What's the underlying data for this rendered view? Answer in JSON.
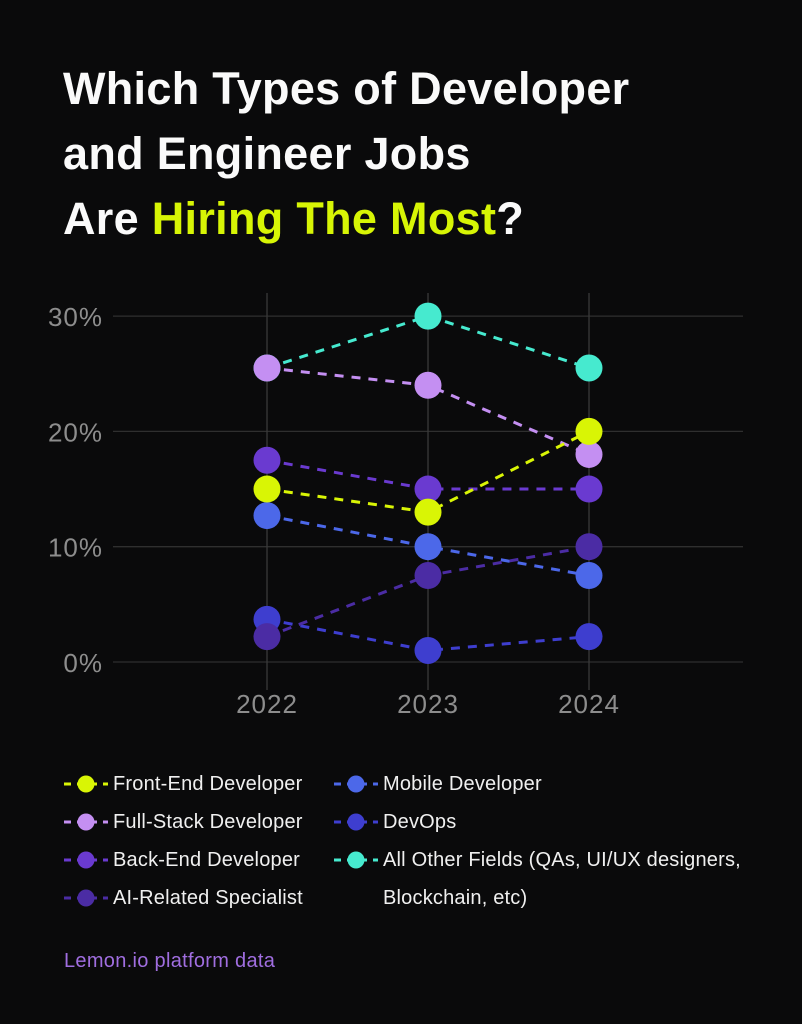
{
  "title": {
    "line1": "Which Types of Developer",
    "line2": "and Engineer Jobs",
    "line3_prefix": "Are ",
    "line3_highlight": "Hiring The Most",
    "line3_suffix": "?"
  },
  "colors": {
    "background": "#0a0a0b",
    "title_text": "#fafafa",
    "highlight": "#d7f505",
    "grid_h": "#2f2f2f",
    "grid_v": "#3a3a3a",
    "axis_text": "#8d8d8d",
    "legend_text": "#f0f0f0",
    "footer_text": "#a06ee0"
  },
  "chart_data": {
    "type": "line",
    "line_style": "dashed",
    "x": [
      2022,
      2023,
      2024
    ],
    "x_labels": [
      "2022",
      "2023",
      "2024"
    ],
    "y_ticks": [
      "0%",
      "10%",
      "20%",
      "30%"
    ],
    "ylim": [
      0,
      30
    ],
    "grid": true,
    "legend_position": "bottom",
    "series": [
      {
        "name": "Front-End Developer",
        "color": "#d9f505",
        "values": [
          15,
          13,
          20
        ]
      },
      {
        "name": "Full-Stack Developer",
        "color": "#c48ff2",
        "values": [
          25.5,
          24,
          18
        ]
      },
      {
        "name": "Back-End Developer",
        "color": "#6a3ad0",
        "values": [
          17.5,
          15,
          15
        ]
      },
      {
        "name": "AI-Related Specialist",
        "color": "#4b2ca4",
        "values": [
          2.2,
          7.5,
          10
        ]
      },
      {
        "name": "Mobile Developer",
        "color": "#4c68e9",
        "values": [
          12.7,
          10,
          7.5
        ]
      },
      {
        "name": "DevOps",
        "color": "#3e3ecf",
        "values": [
          3.7,
          1,
          2.2
        ]
      },
      {
        "name": "All Other Fields (QAs, UI/UX designers, Blockchain, etc)",
        "color": "#46eacf",
        "values": [
          25.5,
          30,
          25.5
        ]
      }
    ],
    "draw_order": [
      6,
      1,
      2,
      4,
      5,
      3,
      0
    ]
  },
  "legend": {
    "columns": [
      [
        0,
        1,
        2,
        3
      ],
      [
        4,
        5,
        6
      ]
    ]
  },
  "footer": {
    "text": "Lemon.io platform data"
  }
}
